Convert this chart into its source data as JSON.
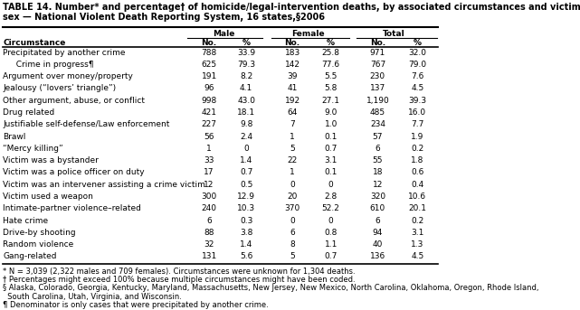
{
  "title_line1": "TABLE 14. Number* and percentage† of homicide/legal-intervention deaths, by associated circumstances and victim's",
  "title_line2": "sex — National Violent Death Reporting System, 16 states,§2006",
  "col_groups": [
    "Male",
    "Female",
    "Total"
  ],
  "sub_cols": [
    "No.",
    "%",
    "No.",
    "%",
    "No.",
    "%"
  ],
  "header_col": "Circumstance",
  "rows": [
    [
      "Precipitated by another crime",
      "788",
      "33.9",
      "183",
      "25.8",
      "971",
      "32.0",
      false
    ],
    [
      "  Crime in progress¶",
      "625",
      "79.3",
      "142",
      "77.6",
      "767",
      "79.0",
      true
    ],
    [
      "Argument over money/property",
      "191",
      "8.2",
      "39",
      "5.5",
      "230",
      "7.6",
      false
    ],
    [
      "Jealousy (“lovers’ triangle”)",
      "96",
      "4.1",
      "41",
      "5.8",
      "137",
      "4.5",
      false
    ],
    [
      "Other argument, abuse, or conflict",
      "998",
      "43.0",
      "192",
      "27.1",
      "1,190",
      "39.3",
      false
    ],
    [
      "Drug related",
      "421",
      "18.1",
      "64",
      "9.0",
      "485",
      "16.0",
      false
    ],
    [
      "Justifiable self-defense/Law enforcement",
      "227",
      "9.8",
      "7",
      "1.0",
      "234",
      "7.7",
      false
    ],
    [
      "Brawl",
      "56",
      "2.4",
      "1",
      "0.1",
      "57",
      "1.9",
      false
    ],
    [
      "“Mercy killing”",
      "1",
      "0",
      "5",
      "0.7",
      "6",
      "0.2",
      false
    ],
    [
      "Victim was a bystander",
      "33",
      "1.4",
      "22",
      "3.1",
      "55",
      "1.8",
      false
    ],
    [
      "Victim was a police officer on duty",
      "17",
      "0.7",
      "1",
      "0.1",
      "18",
      "0.6",
      false
    ],
    [
      "Victim was an intervener assisting a crime victim",
      "12",
      "0.5",
      "0",
      "0",
      "12",
      "0.4",
      false
    ],
    [
      "Victim used a weapon",
      "300",
      "12.9",
      "20",
      "2.8",
      "320",
      "10.6",
      false
    ],
    [
      "Intimate-partner violence–related",
      "240",
      "10.3",
      "370",
      "52.2",
      "610",
      "20.1",
      false
    ],
    [
      "Hate crime",
      "6",
      "0.3",
      "0",
      "0",
      "6",
      "0.2",
      false
    ],
    [
      "Drive-by shooting",
      "88",
      "3.8",
      "6",
      "0.8",
      "94",
      "3.1",
      false
    ],
    [
      "Random violence",
      "32",
      "1.4",
      "8",
      "1.1",
      "40",
      "1.3",
      false
    ],
    [
      "Gang-related",
      "131",
      "5.6",
      "5",
      "0.7",
      "136",
      "4.5",
      false
    ]
  ],
  "footnotes": [
    "* N = 3,039 (2,322 males and 709 females). Circumstances were unknown for 1,304 deaths.",
    "† Percentages might exceed 100% because multiple circumstances might have been coded.",
    "§ Alaska, Colorado, Georgia, Kentucky, Maryland, Massachusetts, New Jersey, New Mexico, North Carolina, Oklahoma, Oregon, Rhode Island,",
    "  South Carolina, Utah, Virginia, and Wisconsin.",
    "¶ Denominator is only cases that were precipitated by another crime."
  ],
  "bg_color": "#ffffff",
  "font_size": 6.5,
  "title_font_size": 7.0
}
